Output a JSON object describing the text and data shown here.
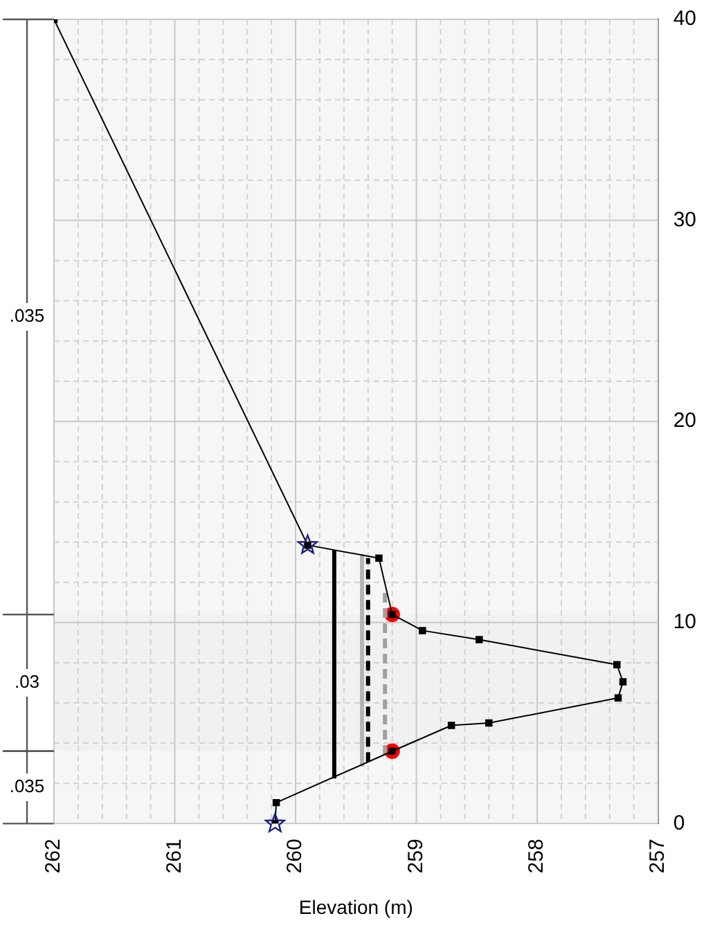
{
  "chart_data": {
    "type": "line",
    "xlabel": "Elevation (m)",
    "xlim": [
      262,
      257
    ],
    "ylim": [
      0,
      40
    ],
    "xticks": [
      257,
      {
        "value": 257.2,
        "label": null
      },
      {
        "value": 257.4,
        "label": null
      },
      {
        "value": 257.6,
        "label": null
      },
      {
        "value": 257.8,
        "label": null
      },
      258,
      {
        "value": 258.2,
        "label": null
      },
      {
        "value": 258.4,
        "label": null
      },
      {
        "value": 258.6,
        "label": null
      },
      {
        "value": 258.8,
        "label": null
      },
      259,
      {
        "value": 259.2,
        "label": null
      },
      {
        "value": 259.4,
        "label": null
      },
      {
        "value": 259.6,
        "label": null
      },
      {
        "value": 259.8,
        "label": null
      },
      260,
      {
        "value": 260.2,
        "label": null
      },
      {
        "value": 260.4,
        "label": null
      },
      {
        "value": 260.6,
        "label": null
      },
      {
        "value": 260.8,
        "label": null
      },
      261,
      {
        "value": 261.2,
        "label": null
      },
      {
        "value": 261.4,
        "label": null
      },
      {
        "value": 261.6,
        "label": null
      },
      {
        "value": 261.8,
        "label": null
      },
      262
    ],
    "yticks": [
      0,
      {
        "value": 2,
        "label": null
      },
      {
        "value": 4,
        "label": null
      },
      {
        "value": 6,
        "label": null
      },
      {
        "value": 8,
        "label": null
      },
      10,
      {
        "value": 12,
        "label": null
      },
      {
        "value": 14,
        "label": null
      },
      {
        "value": 16,
        "label": null
      },
      {
        "value": 18,
        "label": null
      },
      20,
      {
        "value": 22,
        "label": null
      },
      {
        "value": 24,
        "label": null
      },
      {
        "value": 26,
        "label": null
      },
      {
        "value": 28,
        "label": null
      },
      30,
      {
        "value": 32,
        "label": null
      },
      {
        "value": 34,
        "label": null
      },
      {
        "value": 36,
        "label": null
      },
      {
        "value": 38,
        "label": null
      },
      40
    ],
    "grid": true,
    "bands": [
      {
        "axis": "y",
        "from": 0,
        "to": 3.6,
        "label": ".035",
        "color": "#f6f6f6"
      },
      {
        "axis": "y",
        "from": 3.6,
        "to": 10.4,
        "label": ".03",
        "color": "#f1f1f1"
      },
      {
        "axis": "y",
        "from": 10.4,
        "to": 40,
        "label": ".035",
        "color": "#f6f6f6"
      }
    ],
    "series": [
      {
        "type": "line",
        "color": "#000000",
        "marker": "square",
        "line_style": "solid",
        "x": [
          260.17,
          260.16,
          259.2,
          258.71,
          258.4,
          257.33,
          257.29,
          257.34,
          258.48,
          258.95,
          259.2,
          259.31,
          259.9,
          262
        ],
        "values": [
          0,
          1.04,
          3.6,
          4.88,
          5.0,
          6.25,
          7.05,
          7.9,
          9.15,
          9.6,
          10.4,
          13.2,
          13.85,
          40
        ]
      },
      {
        "type": "line",
        "color": "#000000",
        "marker": "none",
        "line_style": "solid",
        "x": [
          259.68,
          259.68
        ],
        "values": [
          2.24,
          13.6
        ]
      },
      {
        "type": "line",
        "color": "#b4b4b4",
        "marker": "none",
        "line_style": "solid",
        "x": [
          259.45,
          259.45
        ],
        "values": [
          2.83,
          13.4
        ]
      },
      {
        "type": "line",
        "color": "#000000",
        "marker": "none",
        "line_style": "dashed",
        "x": [
          259.4,
          259.4
        ],
        "values": [
          3.07,
          13.2
        ]
      },
      {
        "type": "line",
        "color": "#a0a0a0",
        "marker": "none",
        "line_style": "dashed",
        "x": [
          259.26,
          259.26
        ],
        "values": [
          3.42,
          11.56
        ]
      },
      {
        "type": "scatter",
        "color": "#1a237e",
        "marker": "star",
        "x": [
          260.17,
          259.9
        ],
        "values": [
          0,
          13.85
        ]
      },
      {
        "type": "scatter",
        "color": "#ff0000",
        "marker": "circle",
        "x": [
          259.2,
          259.2
        ],
        "values": [
          3.6,
          10.4
        ]
      }
    ]
  }
}
